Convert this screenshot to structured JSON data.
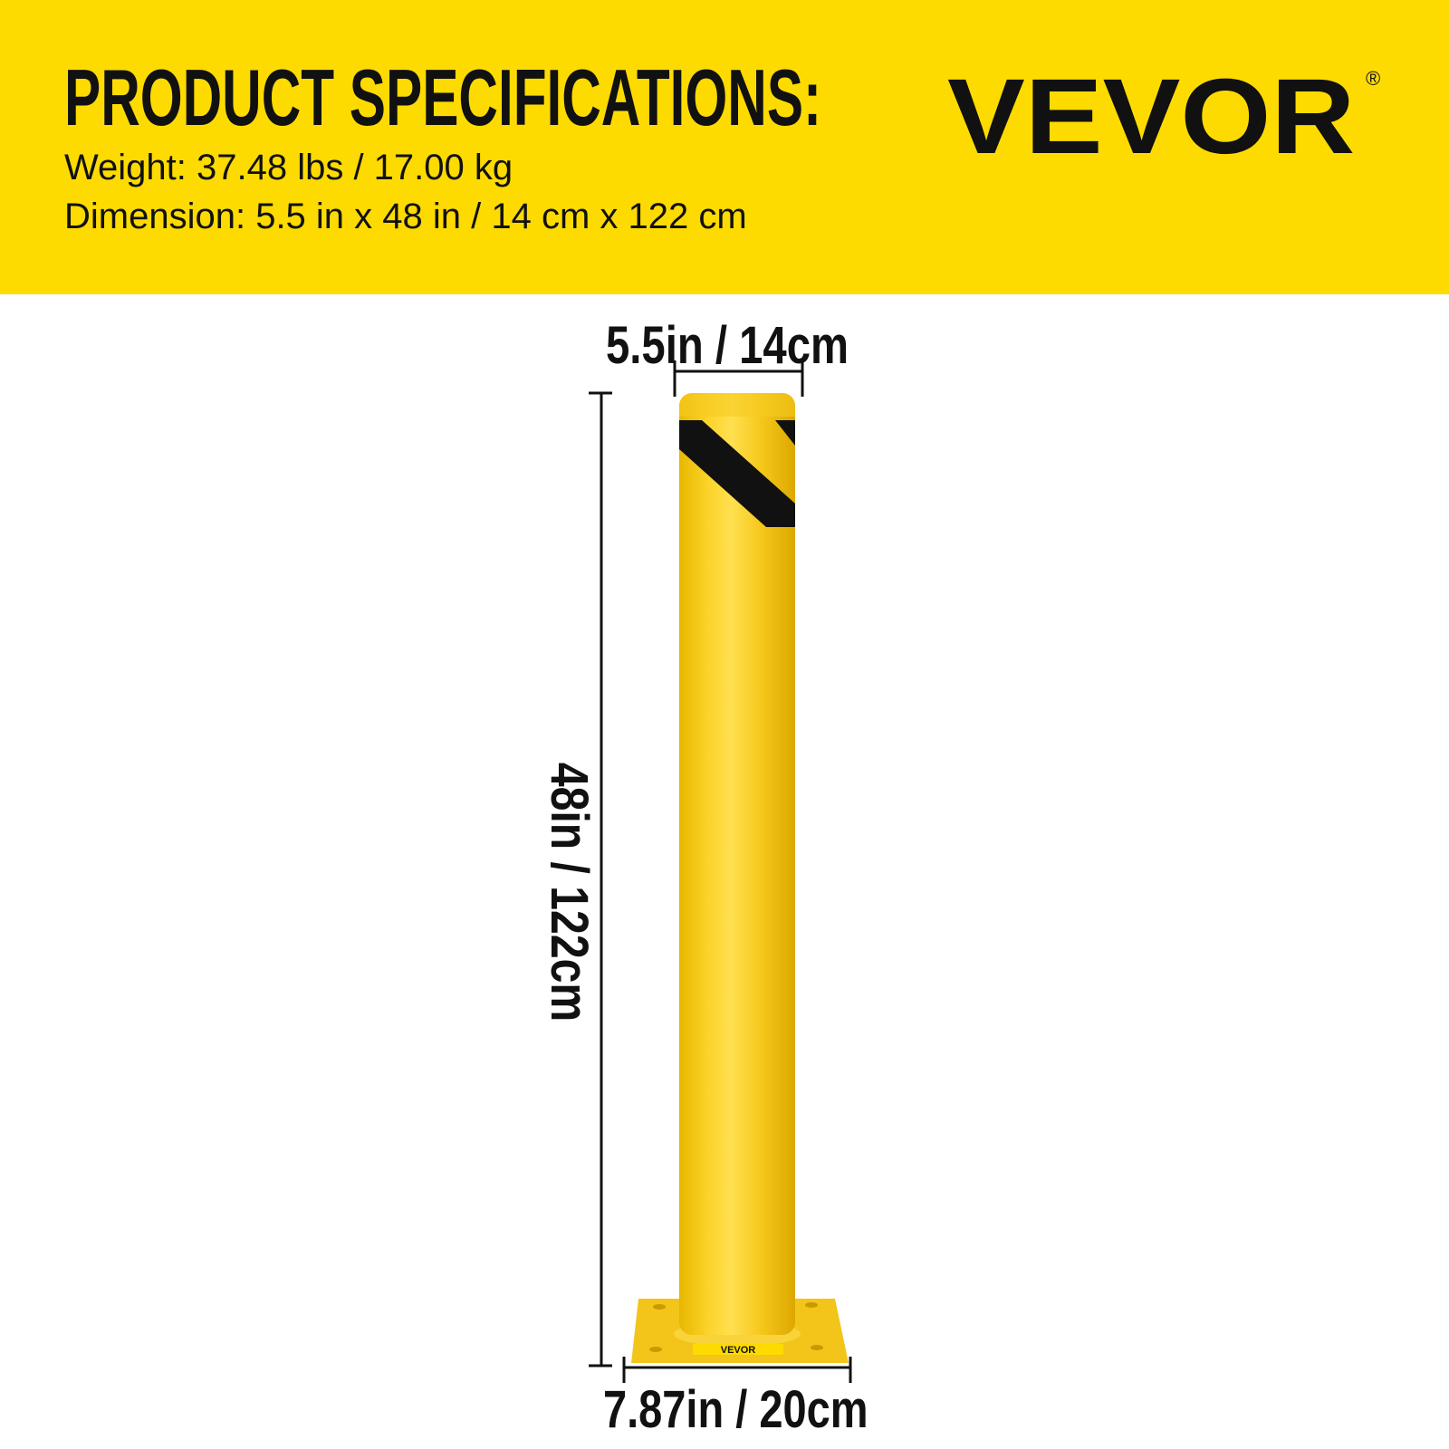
{
  "header": {
    "title": "PRODUCT SPECIFICATIONS:",
    "weight": "Weight: 37.48 lbs / 17.00 kg",
    "dimension": "Dimension: 5.5 in x 48 in / 14 cm x 122 cm",
    "brand": "VEVOR",
    "brand_mark": "®"
  },
  "dimensions": {
    "diameter": "5.5in / 14cm",
    "height": "48in / 122cm",
    "base": "7.87in / 20cm"
  },
  "product": {
    "plate_label": "VEVOR"
  },
  "colors": {
    "banner": "#fedb00",
    "post": "#f5c518",
    "stripe": "#111111"
  }
}
